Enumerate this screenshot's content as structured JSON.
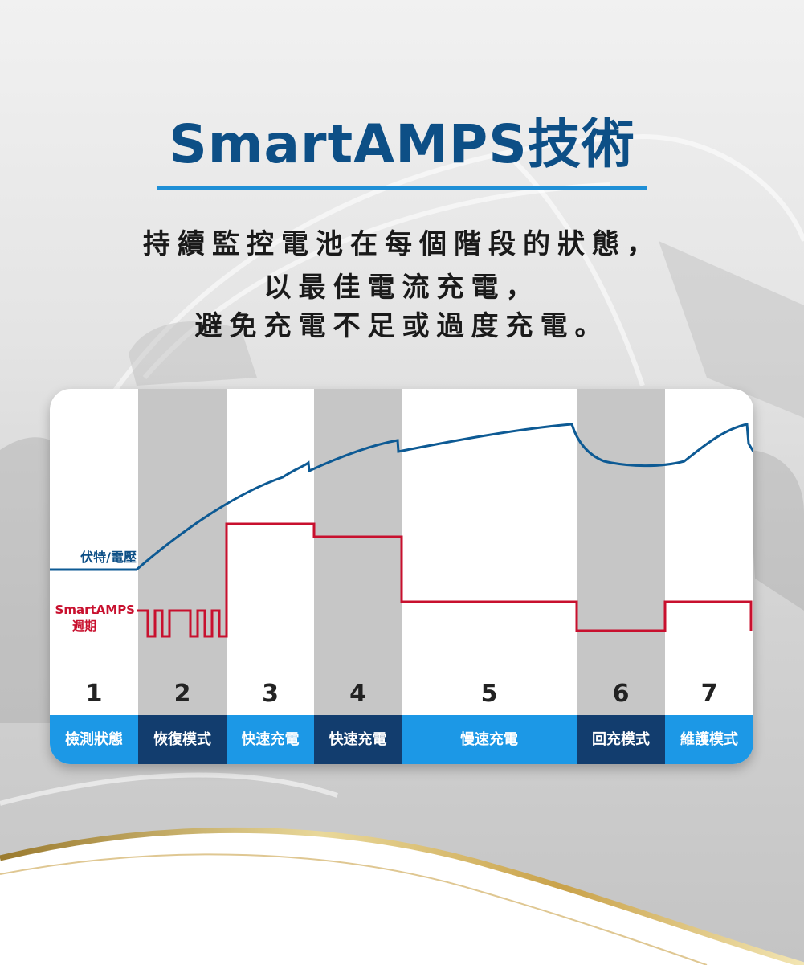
{
  "header": {
    "title": "SmartAMPS技術",
    "lines": [
      "持續監控電池在每個階段的狀態，",
      "以最佳電流充電，",
      "避免充電不足或過度充電。"
    ]
  },
  "chart": {
    "voltage_label": "伏特/電壓",
    "amps_label_line1": "SmartAMPS",
    "amps_label_line2": "週期",
    "stages": [
      {
        "num": "1",
        "label": "檢測狀態",
        "label_style": "light",
        "shade": "white"
      },
      {
        "num": "2",
        "label": "恢復模式",
        "label_style": "dark",
        "shade": "gray"
      },
      {
        "num": "3",
        "label": "快速充電",
        "label_style": "light",
        "shade": "white"
      },
      {
        "num": "4",
        "label": "快速充電",
        "label_style": "dark",
        "shade": "gray"
      },
      {
        "num": "5",
        "label": "慢速充電",
        "label_style": "light",
        "shade": "white"
      },
      {
        "num": "6",
        "label": "回充模式",
        "label_style": "dark",
        "shade": "gray"
      },
      {
        "num": "7",
        "label": "維護模式",
        "label_style": "light",
        "shade": "white"
      }
    ]
  },
  "colors": {
    "title": "#0d4f86",
    "accent": "#1f8fd6",
    "voltage_line": "#0d5a94",
    "amps_line": "#c8102e",
    "label_light": "#1c98e6",
    "label_dark": "#123d6e",
    "gray_column": "#c6c6c6"
  }
}
